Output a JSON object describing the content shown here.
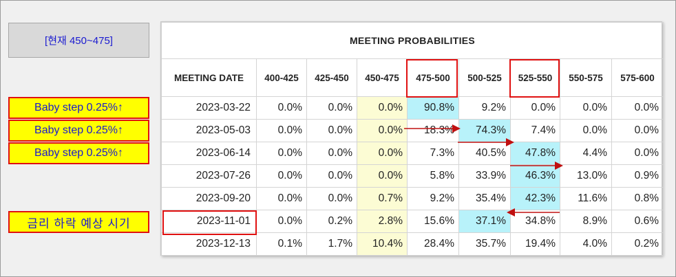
{
  "current_label": "[현재 450~475]",
  "side_labels": [
    "Baby step 0.25%↑",
    "Baby step 0.25%↑",
    "Baby step 0.25%↑"
  ],
  "forecast_label": "금리 하락 예상 시기",
  "table": {
    "title": "MEETING PROBABILITIES",
    "columns": [
      "MEETING DATE",
      "400-425",
      "425-450",
      "450-475",
      "475-500",
      "500-525",
      "525-550",
      "550-575",
      "575-600"
    ],
    "rows": [
      {
        "date": "2023-03-22",
        "values": [
          "0.0%",
          "0.0%",
          "0.0%",
          "90.8%",
          "9.2%",
          "0.0%",
          "0.0%",
          "0.0%"
        ]
      },
      {
        "date": "2023-05-03",
        "values": [
          "0.0%",
          "0.0%",
          "0.0%",
          "18.3%",
          "74.3%",
          "7.4%",
          "0.0%",
          "0.0%"
        ]
      },
      {
        "date": "2023-06-14",
        "values": [
          "0.0%",
          "0.0%",
          "0.0%",
          "7.3%",
          "40.5%",
          "47.8%",
          "4.4%",
          "0.0%"
        ]
      },
      {
        "date": "2023-07-26",
        "values": [
          "0.0%",
          "0.0%",
          "0.0%",
          "5.8%",
          "33.9%",
          "46.3%",
          "13.0%",
          "0.9%"
        ]
      },
      {
        "date": "2023-09-20",
        "values": [
          "0.0%",
          "0.0%",
          "0.7%",
          "9.2%",
          "35.4%",
          "42.3%",
          "11.6%",
          "0.8%"
        ]
      },
      {
        "date": "2023-11-01",
        "values": [
          "0.0%",
          "0.2%",
          "2.8%",
          "15.6%",
          "37.1%",
          "34.8%",
          "8.9%",
          "0.6%"
        ]
      },
      {
        "date": "2023-12-13",
        "values": [
          "0.1%",
          "1.7%",
          "10.4%",
          "28.4%",
          "35.7%",
          "19.4%",
          "4.0%",
          "0.2%"
        ]
      }
    ]
  },
  "highlight": {
    "yellow_column": 2,
    "cyan_cells": [
      [
        0,
        3
      ],
      [
        1,
        4
      ],
      [
        2,
        5
      ],
      [
        3,
        5
      ],
      [
        4,
        5
      ],
      [
        5,
        4
      ]
    ]
  },
  "colors": {
    "accent_red": "#e01010",
    "label_yellow": "#ffff00",
    "label_text": "#1a1ad0",
    "cell_yellow": "#fcfcd4",
    "cell_cyan": "#b8f2fa"
  }
}
